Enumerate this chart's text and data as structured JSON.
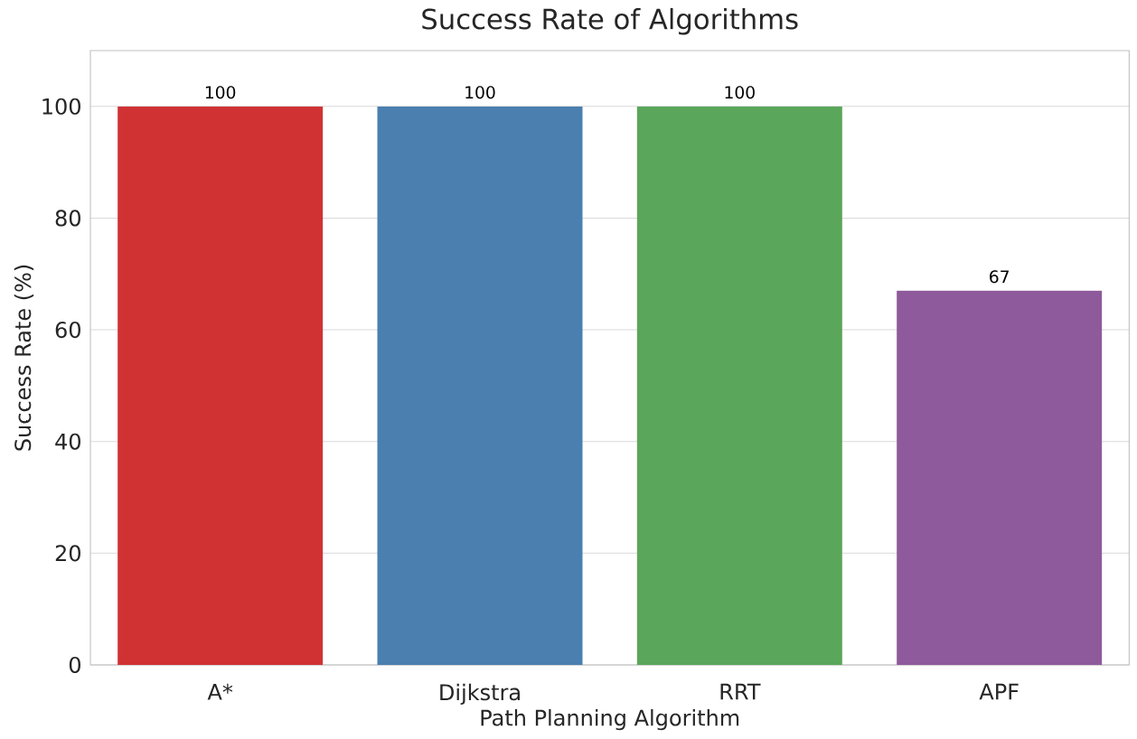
{
  "chart_data": {
    "type": "bar",
    "title": "Success Rate of Algorithms",
    "xlabel": "Path Planning Algorithm",
    "ylabel": "Success Rate (%)",
    "categories": [
      "A*",
      "Dijkstra",
      "RRT",
      "APF"
    ],
    "values": [
      100,
      100,
      100,
      67
    ],
    "colors": [
      "#d03234",
      "#4a7fb0",
      "#5aa65a",
      "#8e5a9b"
    ],
    "ylim": [
      0,
      110
    ],
    "yticks": [
      0,
      20,
      40,
      60,
      80,
      100
    ],
    "grid": "y",
    "data_labels": true
  }
}
